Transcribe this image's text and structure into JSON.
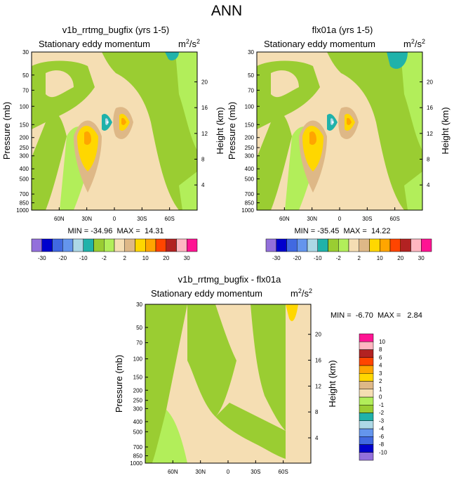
{
  "figure": {
    "title": "ANN",
    "colors": {
      "background": "#ffffff",
      "frame": "#000000"
    }
  },
  "chart_data": [
    {
      "type": "contour",
      "panel": "top-left",
      "case_title": "v1b_rrtmg_bugfix (yrs 1-5)",
      "subtitle_left": "Stationary eddy momentum",
      "units_base": "m",
      "units_exp1": "2",
      "units_mid": "/s",
      "units_exp2": "2",
      "ylabel": "Pressure (mb)",
      "ylabel_right": "Height (km)",
      "stats_text": "MIN = -34.96  MAX =  14.31",
      "x_ticks": [
        "60N",
        "30N",
        "0",
        "30S",
        "60S"
      ],
      "x_tick_values": [
        60,
        30,
        0,
        -30,
        -60
      ],
      "xlim": [
        90,
        -90
      ],
      "y_ticks": [
        "30",
        "50",
        "70",
        "100",
        "150",
        "200",
        "250",
        "300",
        "400",
        "500",
        "700",
        "850",
        "1000"
      ],
      "y_tick_values": [
        30,
        50,
        70,
        100,
        150,
        200,
        250,
        300,
        400,
        500,
        700,
        850,
        1000
      ],
      "ylim": [
        1000,
        30
      ],
      "y_scale": "log",
      "height_ticks": [
        "20",
        "16",
        "12",
        "8",
        "4"
      ],
      "height_tick_values": [
        20,
        16,
        12,
        8,
        4
      ],
      "min": -34.96,
      "max": 14.31
    },
    {
      "type": "contour",
      "panel": "top-right",
      "case_title": "flx01a (yrs 1-5)",
      "subtitle_left": "Stationary eddy momentum",
      "units_base": "m",
      "units_exp1": "2",
      "units_mid": "/s",
      "units_exp2": "2",
      "ylabel": "Pressure (mb)",
      "ylabel_right": "Height (km)",
      "stats_text": "MIN = -35.45  MAX =  14.22",
      "x_ticks": [
        "60N",
        "30N",
        "0",
        "30S",
        "60S"
      ],
      "x_tick_values": [
        60,
        30,
        0,
        -30,
        -60
      ],
      "xlim": [
        90,
        -90
      ],
      "y_ticks": [
        "30",
        "50",
        "70",
        "100",
        "150",
        "200",
        "250",
        "300",
        "400",
        "500",
        "700",
        "850",
        "1000"
      ],
      "y_tick_values": [
        30,
        50,
        70,
        100,
        150,
        200,
        250,
        300,
        400,
        500,
        700,
        850,
        1000
      ],
      "ylim": [
        1000,
        30
      ],
      "y_scale": "log",
      "height_ticks": [
        "20",
        "16",
        "12",
        "8",
        "4"
      ],
      "height_tick_values": [
        20,
        16,
        12,
        8,
        4
      ],
      "min": -35.45,
      "max": 14.22
    },
    {
      "type": "contour",
      "panel": "bottom",
      "case_title": "v1b_rrtmg_bugfix - flx01a",
      "subtitle_left": "Stationary eddy momentum",
      "units_base": "m",
      "units_exp1": "2",
      "units_mid": "/s",
      "units_exp2": "2",
      "ylabel": "Pressure (mb)",
      "ylabel_right": "Height (km)",
      "stats_text": "MIN =  -6.70  MAX =   2.84",
      "x_ticks": [
        "60N",
        "30N",
        "0",
        "30S",
        "60S"
      ],
      "x_tick_values": [
        60,
        30,
        0,
        -30,
        -60
      ],
      "xlim": [
        90,
        -90
      ],
      "y_ticks": [
        "30",
        "50",
        "70",
        "100",
        "150",
        "200",
        "250",
        "300",
        "400",
        "500",
        "700",
        "850",
        "1000"
      ],
      "y_tick_values": [
        30,
        50,
        70,
        100,
        150,
        200,
        250,
        300,
        400,
        500,
        700,
        850,
        1000
      ],
      "ylim": [
        1000,
        30
      ],
      "y_scale": "log",
      "height_ticks": [
        "20",
        "16",
        "12",
        "8",
        "4"
      ],
      "height_tick_values": [
        20,
        16,
        12,
        8,
        4
      ],
      "min": -6.7,
      "max": 2.84
    }
  ],
  "colorbar_top": {
    "orientation": "horizontal",
    "colors": [
      "#9370db",
      "#0000cd",
      "#4169e1",
      "#6495ed",
      "#add8e6",
      "#20b2aa",
      "#9acd32",
      "#b2ee5a",
      "#f5deb3",
      "#deb887",
      "#ffd700",
      "#ffa500",
      "#ff4500",
      "#b22222",
      "#ffb6c1",
      "#ff1493"
    ],
    "labels": [
      "-30",
      "-20",
      "-10",
      "-2",
      "2",
      "10",
      "20",
      "30"
    ],
    "label_after_box": [
      1,
      3,
      5,
      7,
      9,
      11,
      13,
      15
    ]
  },
  "colorbar_bottom": {
    "orientation": "vertical",
    "colors": [
      "#9370db",
      "#0000cd",
      "#4169e1",
      "#6495ed",
      "#add8e6",
      "#20b2aa",
      "#9acd32",
      "#b2ee5a",
      "#f5deb3",
      "#deb887",
      "#ffd700",
      "#ffa500",
      "#ff4500",
      "#b22222",
      "#ffb6c1",
      "#ff1493"
    ],
    "labels": [
      "-10",
      "-8",
      "-6",
      "-4",
      "-3",
      "-2",
      "-1",
      "0",
      "1",
      "2",
      "3",
      "4",
      "6",
      "8",
      "10"
    ]
  },
  "palette": {
    "tan": "#f5deb3",
    "olive": "#9acd32",
    "lightgreen": "#b2ee5a",
    "sand": "#deb887",
    "yellow": "#ffd700",
    "orange": "#ffa500",
    "teal": "#20b2aa",
    "lightblue": "#add8e6",
    "pink": "#ffb6c1",
    "white": "#ffffff"
  }
}
